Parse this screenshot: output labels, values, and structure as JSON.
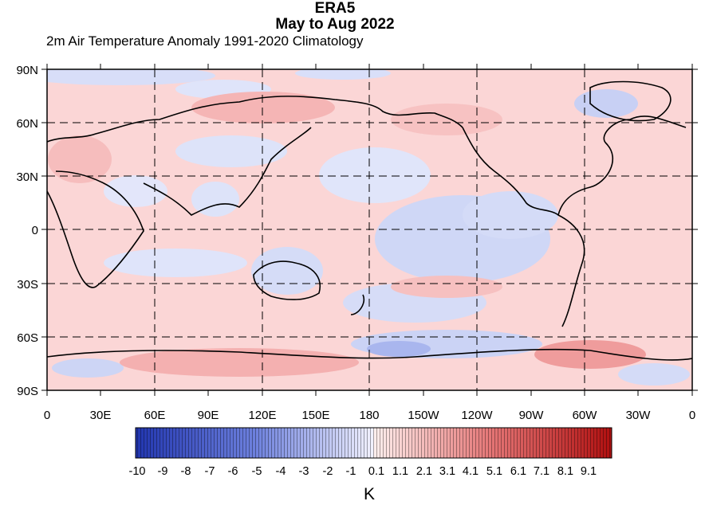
{
  "title": "ERA5",
  "subtitle_line": "May to Aug 2022",
  "variable_label": "2m Air Temperature Anomaly  1991-2020 Climatology",
  "units": "K",
  "lat_labels": [
    "90N",
    "60N",
    "30N",
    "0",
    "30S",
    "60S",
    "90S"
  ],
  "lon_labels": [
    "0",
    "30E",
    "60E",
    "90E",
    "120E",
    "150E",
    "180",
    "150W",
    "120W",
    "90W",
    "60W",
    "30W",
    "0"
  ],
  "colorbar_labels": [
    "-10",
    "-9",
    "-8",
    "-7",
    "-6",
    "-5",
    "-4",
    "-3",
    "-2",
    "-1",
    "0.1",
    "1.1",
    "2.1",
    "3.1",
    "4.1",
    "5.1",
    "6.1",
    "7.1",
    "8.1",
    "9.1"
  ],
  "colors": {
    "cold": "#2b3fb0",
    "neutral": "#ffffff",
    "warm": "#b51414",
    "land_outline": "#000000"
  }
}
